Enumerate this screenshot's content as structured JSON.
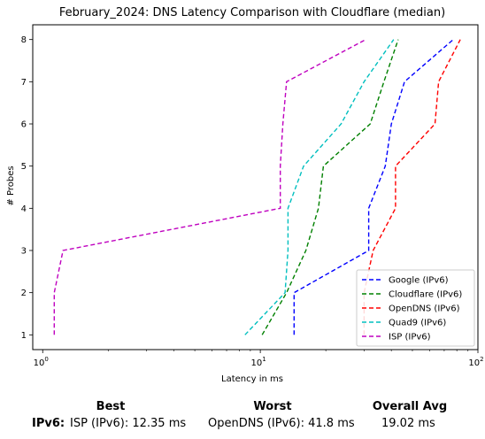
{
  "chart_data": {
    "type": "line",
    "title": "February_2024: DNS Latency Comparison with Cloudflare (median)",
    "xlabel": "Latency in ms",
    "ylabel": "# Probes",
    "xscale": "log",
    "xlim": [
      0.9,
      100
    ],
    "ylim": [
      0.65,
      8.35
    ],
    "xticks": [
      {
        "value": 1,
        "label": "10"
      },
      {
        "value": 10,
        "label": "10"
      },
      {
        "value": 100,
        "label": "10"
      }
    ],
    "xtick_exponents": [
      "0",
      "1",
      "2"
    ],
    "yticks": [
      1,
      2,
      3,
      4,
      5,
      6,
      7,
      8
    ],
    "legend_position": "lower right",
    "line_style": "dashed",
    "series": [
      {
        "name": "Google (IPv6)",
        "color": "#0000ff",
        "points": [
          [
            14.3,
            1
          ],
          [
            14.3,
            2
          ],
          [
            31.5,
            3
          ],
          [
            31.5,
            4
          ],
          [
            37.5,
            5
          ],
          [
            40,
            6
          ],
          [
            46,
            7
          ],
          [
            77,
            8
          ]
        ]
      },
      {
        "name": "Cloudflare (IPv6)",
        "color": "#008000",
        "points": [
          [
            10.2,
            1
          ],
          [
            13.2,
            2
          ],
          [
            16.2,
            3
          ],
          [
            18.5,
            4
          ],
          [
            19.5,
            5
          ],
          [
            32,
            6
          ],
          [
            37,
            7
          ],
          [
            43,
            8
          ]
        ]
      },
      {
        "name": "OpenDNS (IPv6)",
        "color": "#ff0000",
        "points": [
          [
            30,
            1
          ],
          [
            30,
            2
          ],
          [
            33,
            3
          ],
          [
            41.8,
            4
          ],
          [
            41.8,
            5
          ],
          [
            63.5,
            6
          ],
          [
            66,
            7
          ],
          [
            83,
            8
          ]
        ]
      },
      {
        "name": "Quad9 (IPv6)",
        "color": "#00bfbf",
        "points": [
          [
            8.5,
            1
          ],
          [
            13,
            2
          ],
          [
            13.4,
            3
          ],
          [
            13.4,
            4
          ],
          [
            15.8,
            5
          ],
          [
            23.5,
            6
          ],
          [
            30,
            7
          ],
          [
            41,
            8
          ]
        ]
      },
      {
        "name": "ISP (IPv6)",
        "color": "#bf00bf",
        "points": [
          [
            1.13,
            1
          ],
          [
            1.13,
            2
          ],
          [
            1.24,
            3
          ],
          [
            12.35,
            4
          ],
          [
            12.35,
            5
          ],
          [
            12.7,
            6
          ],
          [
            13.2,
            7
          ],
          [
            30.5,
            8
          ]
        ]
      }
    ]
  },
  "summary": {
    "best_header": "Best",
    "worst_header": "Worst",
    "avg_header": "Overall Avg",
    "row_label": "IPv6:",
    "best_value": "ISP (IPv6): 12.35 ms",
    "worst_value": "OpenDNS (IPv6): 41.8 ms",
    "avg_value": "19.02 ms"
  }
}
